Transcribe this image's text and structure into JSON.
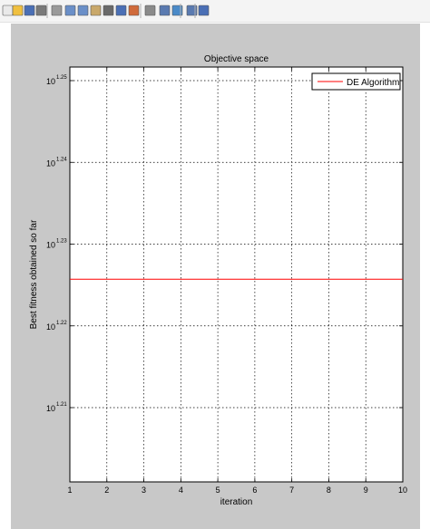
{
  "toolbar": {
    "buttons": [
      "new-figure-icon",
      "open-file-icon",
      "save-icon",
      "print-icon",
      "edit-plot-icon",
      "zoom-in-icon",
      "zoom-out-icon",
      "pan-icon",
      "rotate-3d-icon",
      "data-cursor-icon",
      "brush-icon",
      "link-plot-icon",
      "hide-plot-tools-icon",
      "show-plot-tools-icon",
      "insert-colorbar-icon",
      "insert-legend-icon"
    ]
  },
  "colors": {
    "figure_background": "#c8c8c8",
    "axes_background": "#ffffff",
    "series_line": "#ff0000"
  },
  "chart_data": {
    "type": "line",
    "title": "Objective space",
    "xlabel": "iteration",
    "ylabel": "Best fitness obtained so far",
    "xlim": [
      1,
      10
    ],
    "ylim_exponent": [
      1.205,
      1.25
    ],
    "yscale": "log",
    "grid": true,
    "legend_position": "top-right",
    "x_ticks": [
      {
        "label": "1",
        "value": 1
      },
      {
        "label": "2",
        "value": 2
      },
      {
        "label": "3",
        "value": 3
      },
      {
        "label": "4",
        "value": 4
      },
      {
        "label": "5",
        "value": 5
      },
      {
        "label": "6",
        "value": 6
      },
      {
        "label": "7",
        "value": 7
      },
      {
        "label": "8",
        "value": 8
      },
      {
        "label": "9",
        "value": 9
      },
      {
        "label": "10",
        "value": 10
      }
    ],
    "y_ticks": [
      {
        "base": "10",
        "exponent": "1.25",
        "value_exp": 1.25
      },
      {
        "base": "10",
        "exponent": "1.24",
        "value_exp": 1.24
      },
      {
        "base": "10",
        "exponent": "1.23",
        "value_exp": 1.23
      },
      {
        "base": "10",
        "exponent": "1.22",
        "value_exp": 1.22
      },
      {
        "base": "10",
        "exponent": "1.21",
        "value_exp": 1.21
      }
    ],
    "series": [
      {
        "name": "DE Algorithm",
        "x": [
          1,
          2,
          3,
          4,
          5,
          6,
          7,
          8,
          9,
          10
        ],
        "y_exponent": [
          1.2257,
          1.2257,
          1.2257,
          1.2257,
          1.2257,
          1.2257,
          1.2257,
          1.2257,
          1.2257,
          1.2257
        ]
      }
    ]
  }
}
